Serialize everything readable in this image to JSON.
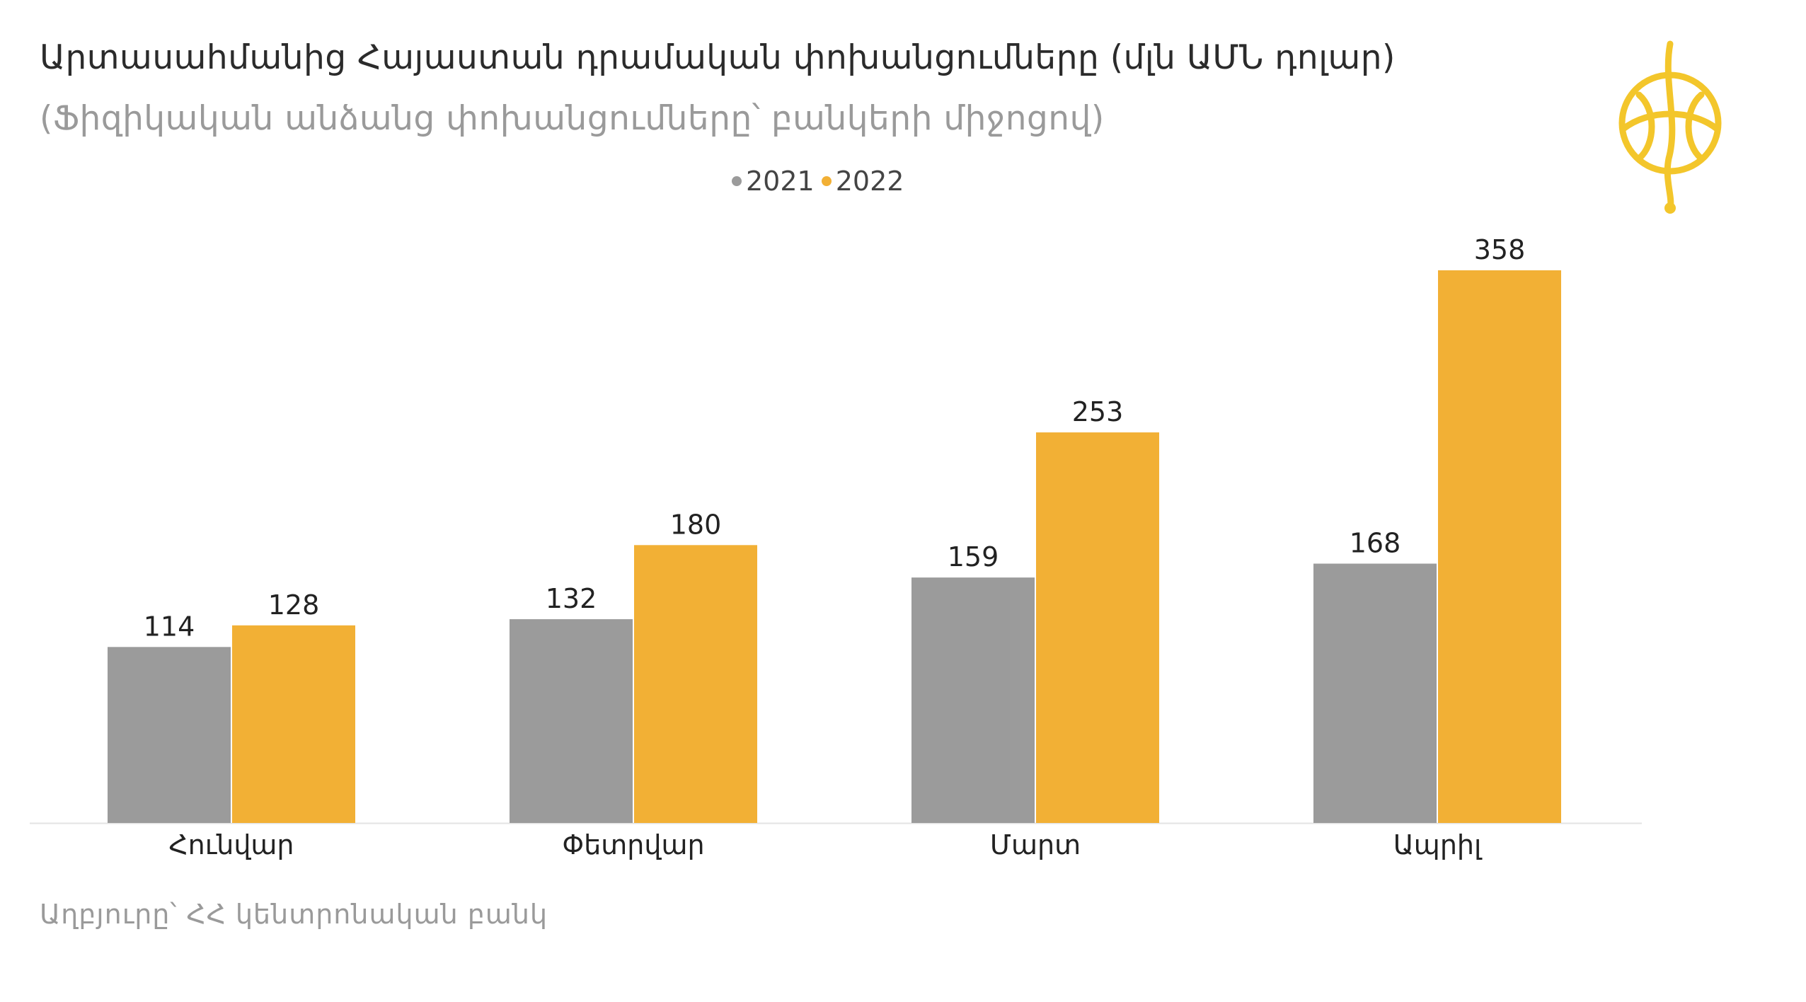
{
  "title": "Արտասահմանից Հայաստան դրամական փոխանցումները (մլն ԱՄՆ դոլար)",
  "subtitle": "(Ֆիզիկական անձանց փոխանցումները՝ բանկերի միջոցով)",
  "source": "Աղբյուրը՝ ՀՀ կենտրոնական բանկ",
  "logo": {
    "icon": "circular-emblem-icon",
    "color": "#F3C62B"
  },
  "chart_data": {
    "type": "bar",
    "categories": [
      "Հունվար",
      "Փետրվար",
      "Մարտ",
      "Ապրիլ"
    ],
    "series": [
      {
        "name": "2021",
        "values": [
          114,
          132,
          159,
          168
        ],
        "color": "#9B9B9B"
      },
      {
        "name": "2022",
        "values": [
          128,
          180,
          253,
          358
        ],
        "color": "#F2B035"
      }
    ],
    "ylim": [
      0,
      358
    ],
    "grid": false,
    "legend": "top-center",
    "data_labels": true
  }
}
